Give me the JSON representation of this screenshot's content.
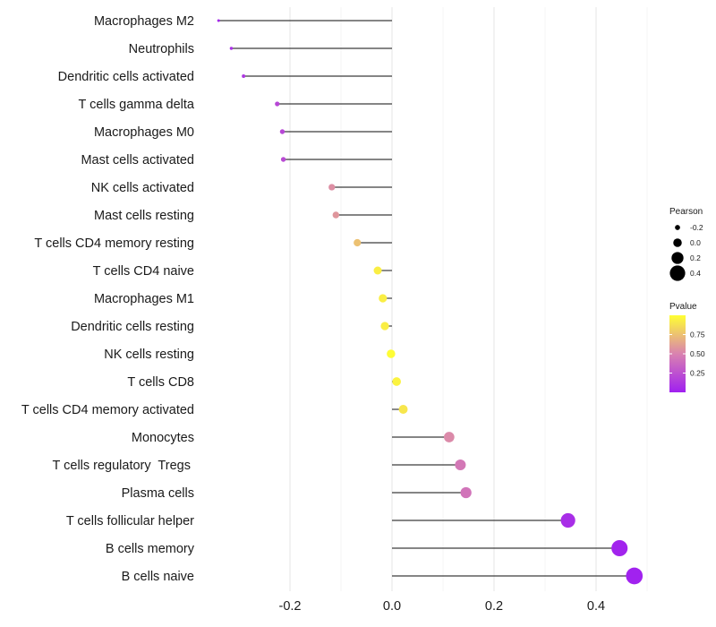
{
  "chart_data": {
    "type": "lollipop",
    "x": {
      "ticks": [
        -0.2,
        0.0,
        0.2,
        0.4
      ],
      "tick_labels": [
        "-0.2",
        "0.0",
        "0.2",
        "0.4"
      ],
      "range": [
        -0.36,
        0.5
      ],
      "grid": true
    },
    "categories": [
      {
        "label": "Macrophages M2",
        "value": -0.34,
        "pvalue": 0.03
      },
      {
        "label": "Neutrophils",
        "value": -0.315,
        "pvalue": 0.08
      },
      {
        "label": "Dendritic cells activated",
        "value": -0.291,
        "pvalue": 0.12
      },
      {
        "label": "T cells gamma delta",
        "value": -0.225,
        "pvalue": 0.2
      },
      {
        "label": "Macrophages M0",
        "value": -0.215,
        "pvalue": 0.2
      },
      {
        "label": "Mast cells activated",
        "value": -0.213,
        "pvalue": 0.22
      },
      {
        "label": "NK cells activated",
        "value": -0.118,
        "pvalue": 0.55
      },
      {
        "label": "Mast cells resting",
        "value": -0.11,
        "pvalue": 0.58
      },
      {
        "label": "T cells CD4 memory resting",
        "value": -0.068,
        "pvalue": 0.75
      },
      {
        "label": "T cells CD4 naive",
        "value": -0.028,
        "pvalue": 0.93
      },
      {
        "label": "Macrophages M1",
        "value": -0.018,
        "pvalue": 0.93
      },
      {
        "label": "Dendritic cells resting",
        "value": -0.014,
        "pvalue": 0.93
      },
      {
        "label": "NK cells resting",
        "value": -0.002,
        "pvalue": 0.99
      },
      {
        "label": "T cells CD8",
        "value": 0.009,
        "pvalue": 0.95
      },
      {
        "label": "T cells CD4 memory activated",
        "value": 0.022,
        "pvalue": 0.9
      },
      {
        "label": "Monocytes",
        "value": 0.112,
        "pvalue": 0.53
      },
      {
        "label": "T cells regulatory  Tregs ",
        "value": 0.134,
        "pvalue": 0.45
      },
      {
        "label": "Plasma cells",
        "value": 0.145,
        "pvalue": 0.43
      },
      {
        "label": "T cells follicular helper",
        "value": 0.345,
        "pvalue": 0.07
      },
      {
        "label": "B cells memory",
        "value": 0.446,
        "pvalue": 0.02
      },
      {
        "label": "B cells naive",
        "value": 0.475,
        "pvalue": 0.01
      }
    ],
    "legend_size": {
      "title": "Pearson",
      "entries": [
        {
          "label": "-0.2",
          "value": -0.2
        },
        {
          "label": "0.0",
          "value": 0.0
        },
        {
          "label": "0.2",
          "value": 0.2
        },
        {
          "label": "0.4",
          "value": 0.4
        }
      ]
    },
    "legend_color": {
      "title": "Pvalue",
      "labels": [
        "0.75",
        "0.50",
        "0.25"
      ],
      "label_values": [
        0.75,
        0.5,
        0.25
      ],
      "range": [
        0.0,
        1.0
      ],
      "low_color": "#a020f0",
      "mid_color": "#d982b0",
      "high_color": "#ffff33"
    }
  }
}
